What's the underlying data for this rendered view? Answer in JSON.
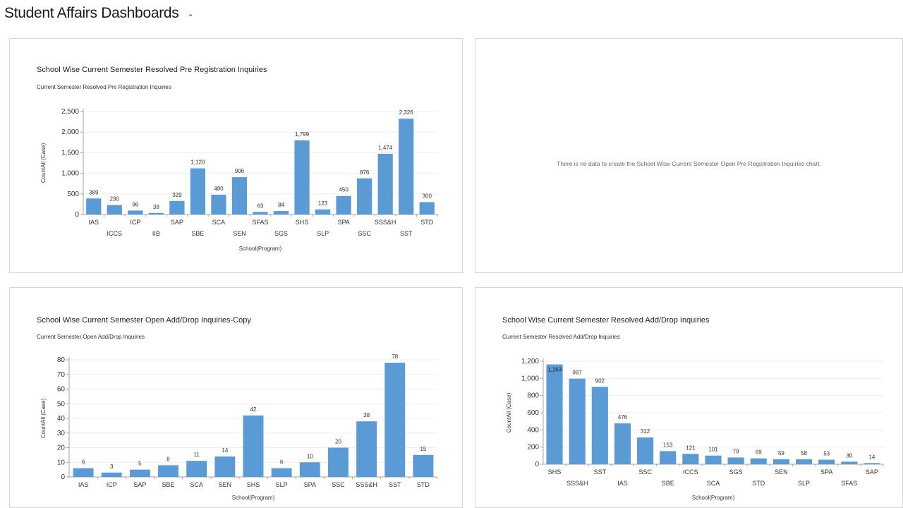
{
  "header": {
    "title": "Student Affairs Dashboards",
    "chevron_icon": "chevron-down-icon"
  },
  "colors": {
    "bar": "#5b9bd5",
    "axis": "#a6a6a6",
    "grid": "#eeeeee"
  },
  "panels": [
    {
      "title": "School Wise Current Semester Resolved Pre Registration Inquiries",
      "subtitle": "Current Semester Resolved Pre Registration Inquiries"
    },
    {
      "nodata": "There is no data to create the School Wise Current Semester Open Pre Registration Inquiries chart."
    },
    {
      "title": "School Wise Current Semester Open Add/Drop Inquiries-Copy",
      "subtitle": "Current Semester Open Add/Drop Inquiries"
    },
    {
      "title": "School Wise Current Semester Resolved Add/Drop Inquiries",
      "subtitle": "Current Semester Resolved Add/Drop Inquiries"
    }
  ],
  "chart_data": [
    {
      "type": "bar",
      "title": "School Wise Current Semester Resolved Pre Registration Inquiries",
      "subtitle": "Current Semester Resolved Pre Registration Inquiries",
      "xlabel": "School(Program)",
      "ylabel": "CountAll (Case)",
      "categories": [
        "IAS",
        "ICCS",
        "ICP",
        "IIB",
        "SAP",
        "SBE",
        "SCA",
        "SEN",
        "SFAS",
        "SGS",
        "SHS",
        "SLP",
        "SPA",
        "SSC",
        "SSS&H",
        "SST",
        "STD"
      ],
      "values": [
        389,
        230,
        96,
        38,
        329,
        1120,
        480,
        906,
        63,
        84,
        1799,
        123,
        450,
        876,
        1474,
        2326,
        300
      ],
      "value_labels": [
        "389",
        "230",
        "96",
        "38",
        "329",
        "1,120",
        "480",
        "906",
        "63",
        "84",
        "1,799",
        "123",
        "450",
        "876",
        "1,474",
        "2,326",
        "300"
      ],
      "yticks": [
        "0",
        "500",
        "1,000",
        "1,500",
        "2,000",
        "2,500"
      ],
      "ylim": [
        0,
        2500
      ],
      "grid": true
    },
    {
      "type": "bar",
      "title": "School Wise Current Semester Open Add/Drop Inquiries-Copy",
      "subtitle": "Current Semester Open Add/Drop Inquiries",
      "xlabel": "School(Program)",
      "ylabel": "CountAll (Case)",
      "categories": [
        "IAS",
        "ICP",
        "SAP",
        "SBE",
        "SCA",
        "SEN",
        "SHS",
        "SLP",
        "SPA",
        "SSC",
        "SSS&H",
        "SST",
        "STD"
      ],
      "values": [
        6,
        3,
        5,
        8,
        11,
        14,
        42,
        6,
        10,
        20,
        38,
        78,
        15
      ],
      "value_labels": [
        "6",
        "3",
        "5",
        "8",
        "11",
        "14",
        "42",
        "6",
        "10",
        "20",
        "38",
        "78",
        "15"
      ],
      "yticks": [
        "0",
        "10",
        "20",
        "30",
        "40",
        "50",
        "60",
        "70",
        "80"
      ],
      "ylim": [
        0,
        80
      ],
      "grid": true
    },
    {
      "type": "bar",
      "title": "School Wise Current Semester Resolved Add/Drop Inquiries",
      "subtitle": "Current Semester Resolved Add/Drop Inquiries",
      "xlabel": "School(Program)",
      "ylabel": "CountAll (Case)",
      "categories": [
        "SHS",
        "SSS&H",
        "SST",
        "IAS",
        "SSC",
        "SBE",
        "ICCS",
        "SCA",
        "SGS",
        "STD",
        "SEN",
        "SLP",
        "SPA",
        "SFAS",
        "SAP"
      ],
      "values": [
        1163,
        997,
        902,
        476,
        312,
        153,
        121,
        101,
        79,
        69,
        59,
        58,
        53,
        30,
        14
      ],
      "value_labels": [
        "1,163",
        "997",
        "902",
        "476",
        "312",
        "153",
        "121",
        "101",
        "79",
        "69",
        "59",
        "58",
        "53",
        "30",
        "14"
      ],
      "yticks": [
        "0",
        "200",
        "400",
        "600",
        "800",
        "1,000",
        "1,200"
      ],
      "ylim": [
        0,
        1200
      ],
      "grid": true
    }
  ]
}
